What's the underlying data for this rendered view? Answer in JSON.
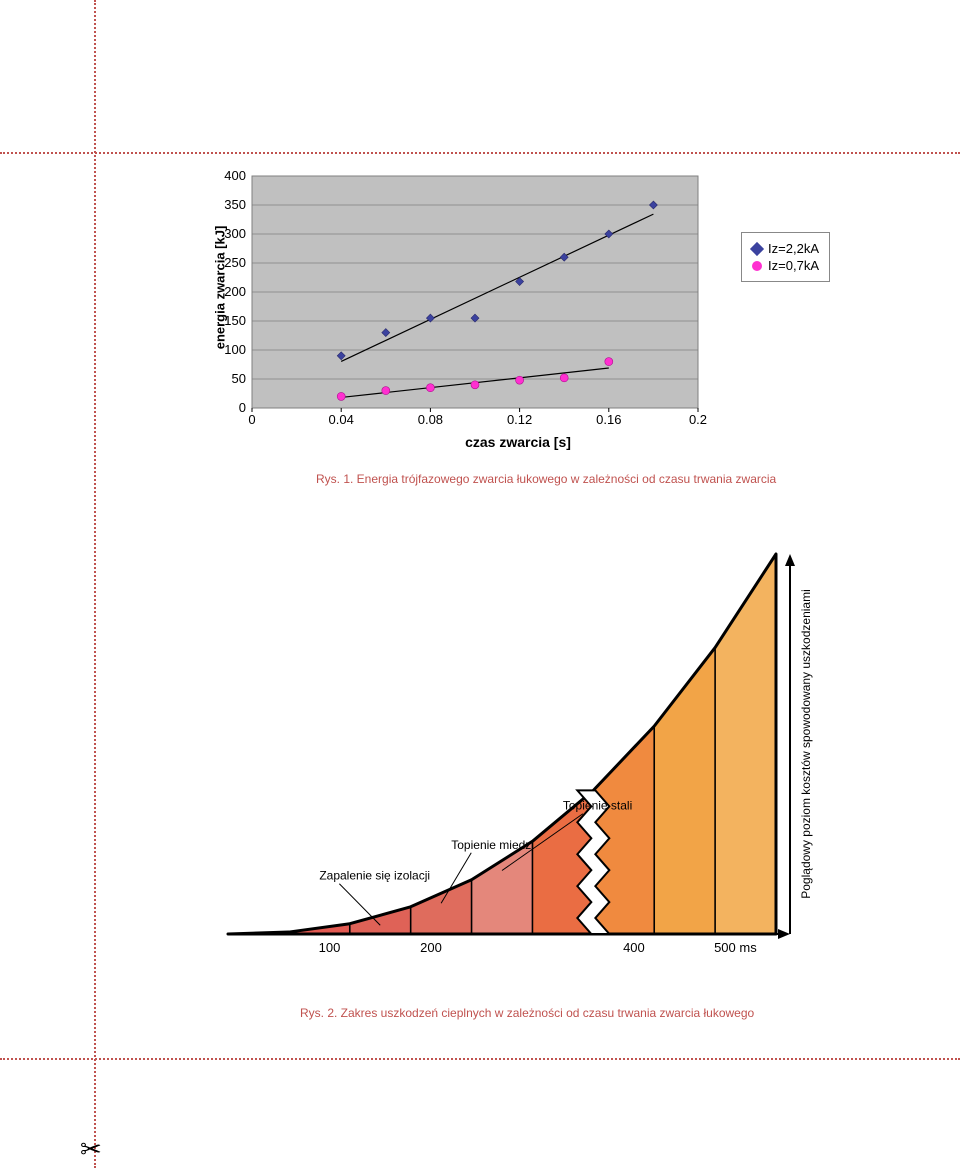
{
  "chart1": {
    "type": "scatter+line",
    "title": "",
    "ylabel": "energia zwarcia [kJ]",
    "xlabel": "czas zwarcia [s]",
    "plot_bg": "#c0c0c0",
    "border_color": "#7f7f7f",
    "grid_color": "#7f7f7f",
    "xlim": [
      0,
      0.2
    ],
    "ylim": [
      0,
      400
    ],
    "yticks": [
      0,
      50,
      100,
      150,
      200,
      250,
      300,
      350,
      400
    ],
    "xticks": [
      0,
      0.04,
      0.08,
      0.12,
      0.16,
      0.2
    ],
    "xtick_labels": [
      "0",
      "0.04",
      "0.08",
      "0.12",
      "0.16",
      "0.2"
    ],
    "ytick_labels": [
      "0",
      "50",
      "100",
      "150",
      "200",
      "250",
      "300",
      "350",
      "400"
    ],
    "series": [
      {
        "name": "Iz=2,2kA",
        "marker": "diamond",
        "marker_color": "#3b429f",
        "marker_border": "#2a2a6a",
        "marker_size": 8,
        "line_color": "#000000",
        "line_width": 1.2,
        "x": [
          0.04,
          0.06,
          0.08,
          0.1,
          0.12,
          0.14,
          0.16,
          0.18
        ],
        "y": [
          90,
          130,
          155,
          155,
          218,
          260,
          300,
          350
        ]
      },
      {
        "name": "Iz=0,7kA",
        "marker": "circle",
        "marker_color": "#ff2fd0",
        "marker_border": "#b01090",
        "marker_size": 8,
        "line_color": "#000000",
        "line_width": 1.2,
        "x": [
          0.04,
          0.06,
          0.08,
          0.1,
          0.12,
          0.14,
          0.16
        ],
        "y": [
          20,
          30,
          35,
          40,
          48,
          52,
          80
        ]
      }
    ],
    "legend": {
      "border_color": "#888888",
      "bg": "#ffffff",
      "items": [
        "Iz=2,2kA",
        "Iz=0,7kA"
      ]
    },
    "label_fontsize": 13,
    "tick_fontsize": 13
  },
  "caption1": "Rys. 1. Energia trójfazowego zwarcia łukowego w zależności od czasu trwania zwarcia",
  "chart2": {
    "type": "infographic",
    "bg": "#ffffff",
    "outline_color": "#000000",
    "outline_width": 3,
    "ylabel_right": "Poglądowy poziom kosztów spowodowany uszkodzeniami",
    "xticks": [
      100,
      200,
      400,
      500
    ],
    "xtick_labels": [
      "100",
      "200",
      "400",
      "500 ms"
    ],
    "region_labels": [
      {
        "text": "Zapalenie się izolacji",
        "x_anchor": 80
      },
      {
        "text": "Topienie miedzi",
        "x_anchor": 220
      },
      {
        "text": "Topienie stali",
        "x_anchor": 330
      }
    ],
    "bands": [
      {
        "color": "#e94f4a"
      },
      {
        "color": "#e35a52"
      },
      {
        "color": "#df6257"
      },
      {
        "color": "#df6c5d"
      },
      {
        "color": "#e4877b"
      },
      {
        "color": "#ea6d43"
      },
      {
        "color": "#f08a3f"
      },
      {
        "color": "#f2a447"
      },
      {
        "color": "#f3b35f"
      }
    ],
    "label_fontsize": 12,
    "tick_fontsize": 13
  },
  "caption2": "Rys. 2. Zakres uszkodzeń cieplnych w zależności od czasu trwania zwarcia łukowego",
  "decorations": {
    "dotted_color": "#c0524f",
    "scissors": "✂"
  }
}
